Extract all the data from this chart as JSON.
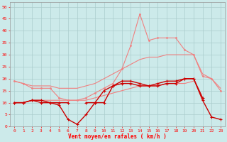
{
  "x": [
    0,
    1,
    2,
    3,
    4,
    5,
    6,
    7,
    8,
    9,
    10,
    11,
    12,
    13,
    14,
    15,
    16,
    17,
    18,
    19,
    20,
    21,
    22,
    23
  ],
  "line_peak": [
    19,
    18,
    16,
    16,
    16,
    12,
    11,
    11,
    12,
    14,
    16,
    18,
    24,
    34,
    47,
    36,
    37,
    37,
    37,
    32,
    30,
    21,
    20,
    15
  ],
  "line_upper_diag": [
    19,
    18,
    17,
    17,
    17,
    16,
    16,
    16,
    17,
    18,
    20,
    22,
    24,
    26,
    28,
    29,
    29,
    30,
    30,
    30,
    30,
    22,
    20,
    16
  ],
  "line_lower_diag": [
    10,
    10,
    11,
    11,
    11,
    11,
    11,
    11,
    11,
    12,
    13,
    14,
    15,
    16,
    17,
    17,
    17,
    18,
    18,
    18,
    19,
    null,
    null,
    null
  ],
  "line_avg": [
    10,
    10,
    11,
    10,
    10,
    10,
    10,
    null,
    10,
    10,
    15,
    17,
    18,
    18,
    17,
    17,
    18,
    19,
    19,
    20,
    20,
    12,
    null,
    null
  ],
  "line_min": [
    10,
    10,
    11,
    11,
    10,
    9,
    3,
    1,
    5,
    10,
    10,
    17,
    19,
    19,
    18,
    17,
    17,
    18,
    18,
    20,
    20,
    11,
    4,
    3
  ],
  "ylim": [
    0,
    52
  ],
  "yticks": [
    0,
    5,
    10,
    15,
    20,
    25,
    30,
    35,
    40,
    45,
    50
  ],
  "xlabel": "Vent moyen/en rafales ( km/h )",
  "bg_color": "#cceaea",
  "grid_color": "#aacccc",
  "color_pink": "#f08080",
  "color_dark_red": "#cc0000",
  "color_medium_red": "#dd4444"
}
